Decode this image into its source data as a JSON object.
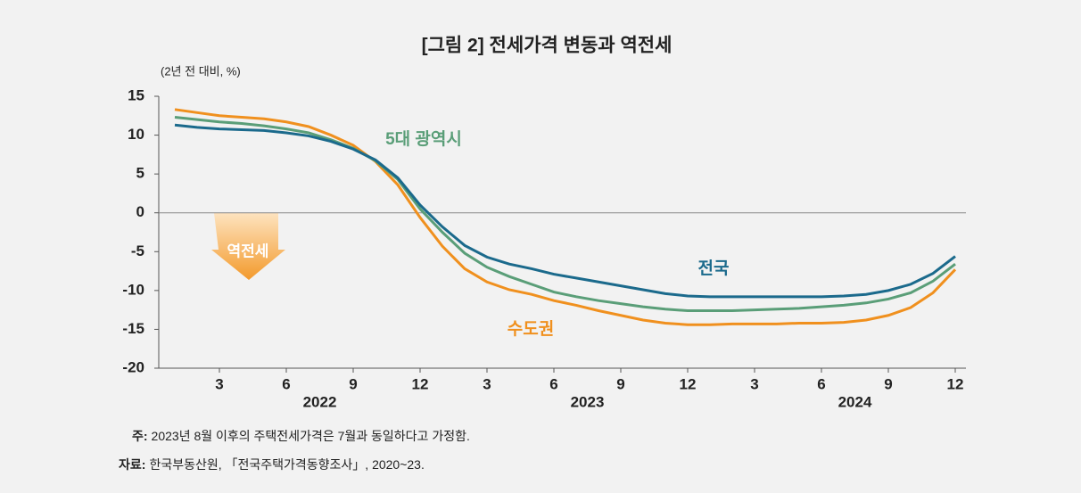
{
  "chart_data": {
    "type": "line",
    "title": "[그림 2] 전세가격 변동과 역전세",
    "y_label": "(2년 전 대비, %)",
    "categories": [
      null,
      null,
      "3",
      null,
      null,
      "6",
      null,
      null,
      "9",
      null,
      null,
      "12",
      null,
      null,
      "3",
      null,
      null,
      "6",
      null,
      null,
      "9",
      null,
      null,
      "12",
      null,
      null,
      "3",
      null,
      null,
      "6",
      null,
      null,
      "9",
      null,
      null,
      "12"
    ],
    "year_labels": [
      "2022",
      "2023",
      "2024"
    ],
    "series": [
      {
        "name": "전국",
        "color": "#1b6a8c",
        "values": [
          11.3,
          11.0,
          10.8,
          10.7,
          10.6,
          10.3,
          9.9,
          9.2,
          8.2,
          6.8,
          4.5,
          1.0,
          -1.8,
          -4.2,
          -5.7,
          -6.6,
          -7.2,
          -7.9,
          -8.4,
          -8.9,
          -9.4,
          -9.9,
          -10.4,
          -10.7,
          -10.8,
          -10.8,
          -10.8,
          -10.8,
          -10.8,
          -10.8,
          -10.7,
          -10.5,
          -10.0,
          -9.2,
          -7.8,
          -5.6
        ]
      },
      {
        "name": "5대 광역시",
        "color": "#5a9e78",
        "values": [
          12.3,
          12.0,
          11.7,
          11.5,
          11.2,
          10.8,
          10.3,
          9.4,
          8.3,
          6.7,
          4.3,
          0.5,
          -2.5,
          -5.2,
          -7.0,
          -8.2,
          -9.2,
          -10.2,
          -10.8,
          -11.3,
          -11.7,
          -12.1,
          -12.4,
          -12.6,
          -12.6,
          -12.6,
          -12.5,
          -12.4,
          -12.3,
          -12.1,
          -11.9,
          -11.6,
          -11.1,
          -10.3,
          -8.8,
          -6.6
        ]
      },
      {
        "name": "수도권",
        "color": "#f0901e",
        "values": [
          13.3,
          12.9,
          12.5,
          12.3,
          12.1,
          11.7,
          11.1,
          10.0,
          8.7,
          6.6,
          3.6,
          -0.6,
          -4.3,
          -7.2,
          -8.9,
          -9.9,
          -10.5,
          -11.3,
          -11.9,
          -12.6,
          -13.2,
          -13.8,
          -14.2,
          -14.4,
          -14.4,
          -14.3,
          -14.3,
          -14.3,
          -14.2,
          -14.2,
          -14.1,
          -13.8,
          -13.2,
          -12.2,
          -10.3,
          -7.3
        ]
      }
    ],
    "ylim": [
      -20,
      15
    ],
    "yticks": [
      -20,
      -15,
      -10,
      -5,
      0,
      5,
      10,
      15
    ],
    "annotations": [
      "역전세"
    ],
    "notes": [
      {
        "label": "주:",
        "text": "2023년 8월 이후의 주택전세가격은 7월과 동일하다고 가정함."
      },
      {
        "label": "자료:",
        "text": "한국부동산원, 「전국주택가격동향조사」, 2020~23."
      }
    ]
  }
}
